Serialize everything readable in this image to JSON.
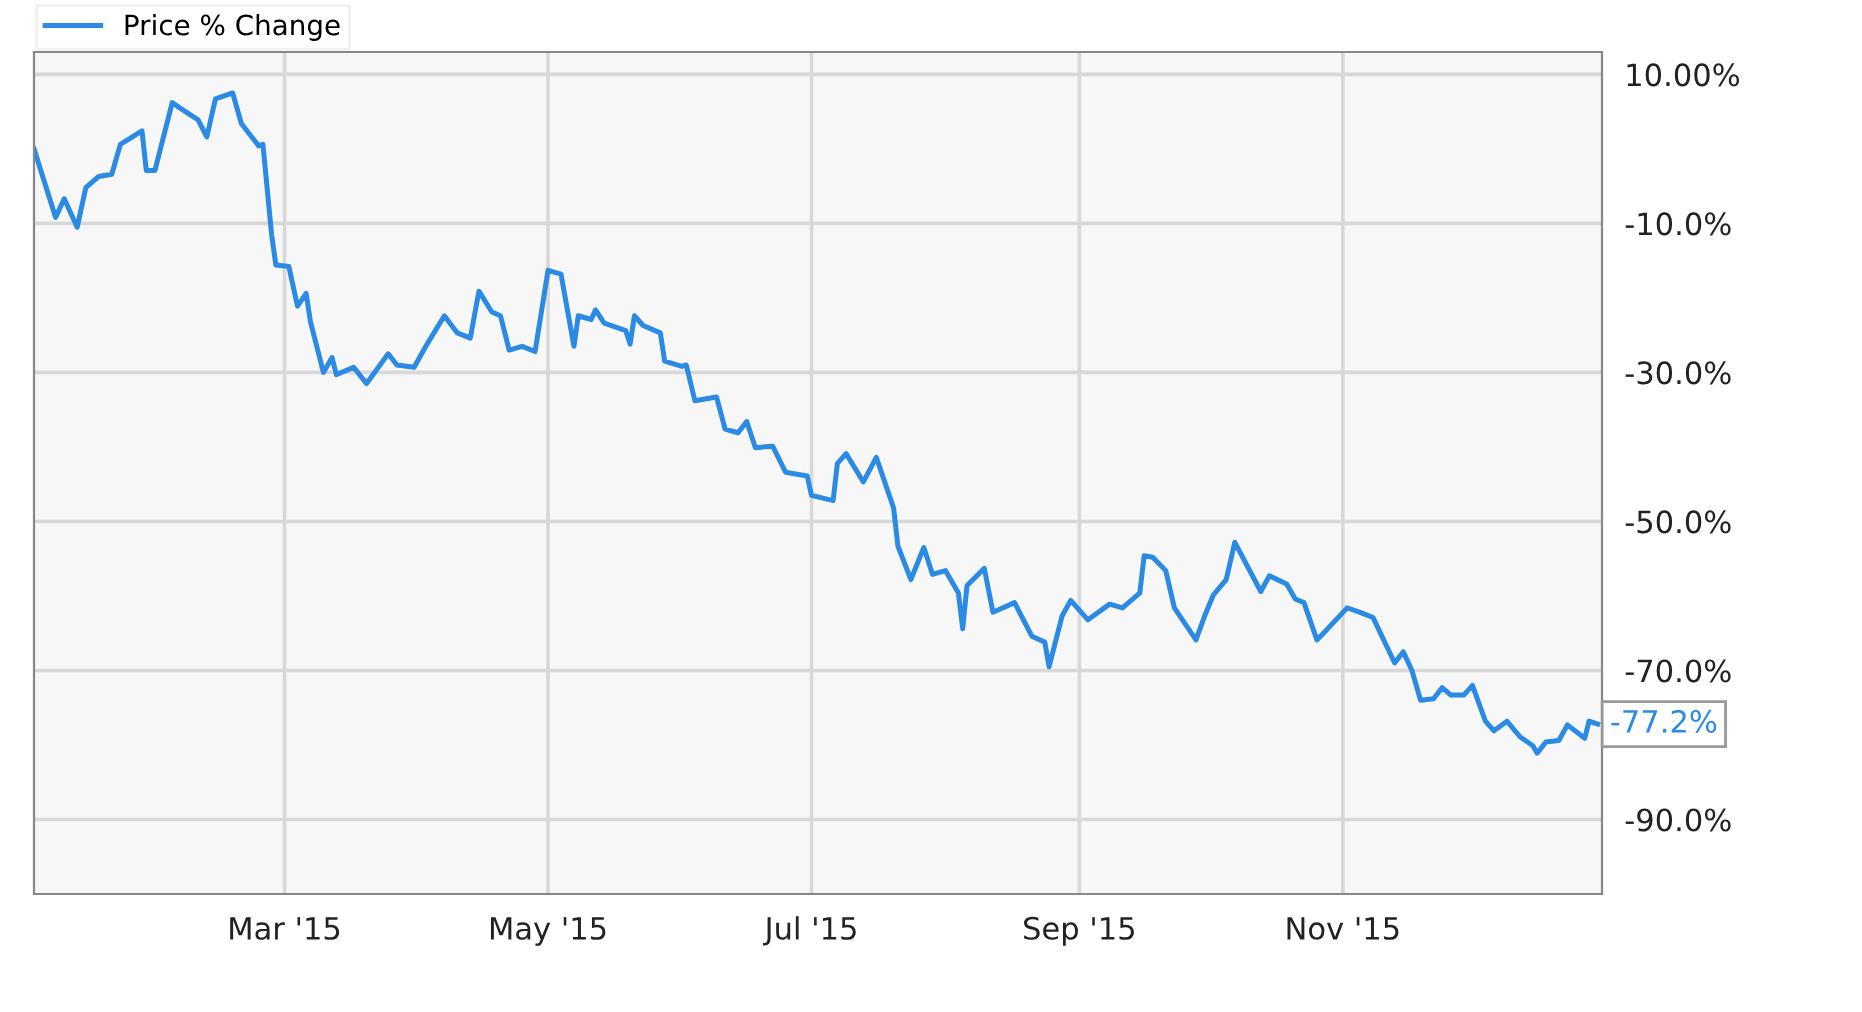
{
  "chart_data": {
    "type": "line",
    "legend": "top left",
    "grid": true,
    "marker": "none",
    "line_style": "solid",
    "xlim": [
      "2015-01-02",
      "2015-12-31"
    ],
    "xticks": [
      {
        "value": "2015-03-01",
        "label": "Mar '15"
      },
      {
        "value": "2015-05-01",
        "label": "May '15"
      },
      {
        "value": "2015-07-01",
        "label": "Jul '15"
      },
      {
        "value": "2015-09-01",
        "label": "Sep '15"
      },
      {
        "value": "2015-11-01",
        "label": "Nov '15"
      }
    ],
    "ylim": [
      -100,
      13
    ],
    "yticks": [
      {
        "value": 10,
        "label": "10.00%"
      },
      {
        "value": -10,
        "label": "-10.0%"
      },
      {
        "value": -30,
        "label": "-30.0%"
      },
      {
        "value": -50,
        "label": "-50.0%"
      },
      {
        "value": -70,
        "label": "-70.0%"
      },
      {
        "value": -90,
        "label": "-90.0%"
      }
    ],
    "annotations": [
      {
        "text": "-77.2%",
        "x": "2015-12-30",
        "y": -77.2
      }
    ],
    "series": [
      {
        "name": "Price % Change",
        "color": "#2a8ae4",
        "x": [
          "2015-01-02",
          "2015-01-07",
          "2015-01-09",
          "2015-01-12",
          "2015-01-14",
          "2015-01-17",
          "2015-01-20",
          "2015-01-22",
          "2015-01-27",
          "2015-01-28",
          "2015-01-30",
          "2015-02-03",
          "2015-02-05",
          "2015-02-09",
          "2015-02-11",
          "2015-02-13",
          "2015-02-17",
          "2015-02-19",
          "2015-02-23",
          "2015-02-24",
          "2015-02-26",
          "2015-02-27",
          "2015-03-02",
          "2015-03-04",
          "2015-03-06",
          "2015-03-07",
          "2015-03-10",
          "2015-03-12",
          "2015-03-13",
          "2015-03-17",
          "2015-03-20",
          "2015-03-25",
          "2015-03-27",
          "2015-03-31",
          "2015-04-03",
          "2015-04-07",
          "2015-04-10",
          "2015-04-13",
          "2015-04-15",
          "2015-04-18",
          "2015-04-20",
          "2015-04-22",
          "2015-04-25",
          "2015-04-28",
          "2015-05-01",
          "2015-05-04",
          "2015-05-07",
          "2015-05-08",
          "2015-05-11",
          "2015-05-12",
          "2015-05-14",
          "2015-05-19",
          "2015-05-20",
          "2015-05-21",
          "2015-05-23",
          "2015-05-27",
          "2015-05-28",
          "2015-06-01",
          "2015-06-02",
          "2015-06-04",
          "2015-06-09",
          "2015-06-11",
          "2015-06-14",
          "2015-06-16",
          "2015-06-18",
          "2015-06-22",
          "2015-06-25",
          "2015-06-30",
          "2015-07-01",
          "2015-07-06",
          "2015-07-07",
          "2015-07-09",
          "2015-07-13",
          "2015-07-16",
          "2015-07-20",
          "2015-07-21",
          "2015-07-24",
          "2015-07-27",
          "2015-07-29",
          "2015-08-01",
          "2015-08-04",
          "2015-08-05",
          "2015-08-06",
          "2015-08-10",
          "2015-08-12",
          "2015-08-17",
          "2015-08-21",
          "2015-08-24",
          "2015-08-25",
          "2015-08-28",
          "2015-08-30",
          "2015-09-03",
          "2015-09-08",
          "2015-09-11",
          "2015-09-15",
          "2015-09-16",
          "2015-09-18",
          "2015-09-21",
          "2015-09-23",
          "2015-09-28",
          "2015-09-30",
          "2015-10-02",
          "2015-10-05",
          "2015-10-07",
          "2015-10-13",
          "2015-10-15",
          "2015-10-19",
          "2015-10-21",
          "2015-10-23",
          "2015-10-26",
          "2015-10-28",
          "2015-11-02",
          "2015-11-05",
          "2015-11-08",
          "2015-11-13",
          "2015-11-15",
          "2015-11-17",
          "2015-11-19",
          "2015-11-22",
          "2015-11-24",
          "2015-11-26",
          "2015-11-29",
          "2015-12-01",
          "2015-12-04",
          "2015-12-06",
          "2015-12-09",
          "2015-12-12",
          "2015-12-15",
          "2015-12-16",
          "2015-12-18",
          "2015-12-21",
          "2015-12-23",
          "2015-12-27",
          "2015-12-28",
          "2015-12-30"
        ],
        "values": [
          0,
          -9.2,
          -6.7,
          -10.5,
          -5.2,
          -3.7,
          -3.4,
          0.6,
          2.4,
          -2.9,
          -2.9,
          6.2,
          5.4,
          3.9,
          1.6,
          6.7,
          7.5,
          3.4,
          0.4,
          0.6,
          -11.5,
          -15.6,
          -15.8,
          -21.1,
          -19.4,
          -23.2,
          -30,
          -28,
          -30.3,
          -29.3,
          -31.5,
          -27.5,
          -29,
          -29.3,
          -26.2,
          -22.4,
          -24.7,
          -25.4,
          -19.1,
          -21.9,
          -22.4,
          -27,
          -26.5,
          -27.2,
          -16.3,
          -16.8,
          -26.5,
          -22.4,
          -22.9,
          -21.6,
          -23.4,
          -24.4,
          -26.2,
          -22.4,
          -23.7,
          -24.7,
          -28.5,
          -29.2,
          -29,
          -33.8,
          -33.3,
          -37.6,
          -38.1,
          -36.6,
          -40.1,
          -39.9,
          -43.4,
          -43.9,
          -46.5,
          -47.2,
          -42.2,
          -40.9,
          -44.7,
          -41.4,
          -48.2,
          -53.3,
          -57.8,
          -53.5,
          -57.1,
          -56.6,
          -59.6,
          -64.4,
          -58.6,
          -56.3,
          -62.2,
          -60.9,
          -65.4,
          -66.2,
          -69.5,
          -62.7,
          -60.6,
          -63.2,
          -61.1,
          -61.6,
          -59.6,
          -54.6,
          -54.8,
          -56.6,
          -61.6,
          -65.9,
          -62.7,
          -59.9,
          -57.8,
          -52.8,
          -59.4,
          -57.3,
          -58.4,
          -60.4,
          -60.9,
          -65.9,
          -64.7,
          -61.6,
          -62.2,
          -62.9,
          -69,
          -67.5,
          -70,
          -74,
          -73.8,
          -72.3,
          -73.3,
          -73.3,
          -72,
          -76.8,
          -78.1,
          -76.8,
          -78.9,
          -80.1,
          -81.1,
          -79.6,
          -79.4,
          -77.3,
          -79.1,
          -76.8,
          -77.2
        ]
      }
    ]
  }
}
